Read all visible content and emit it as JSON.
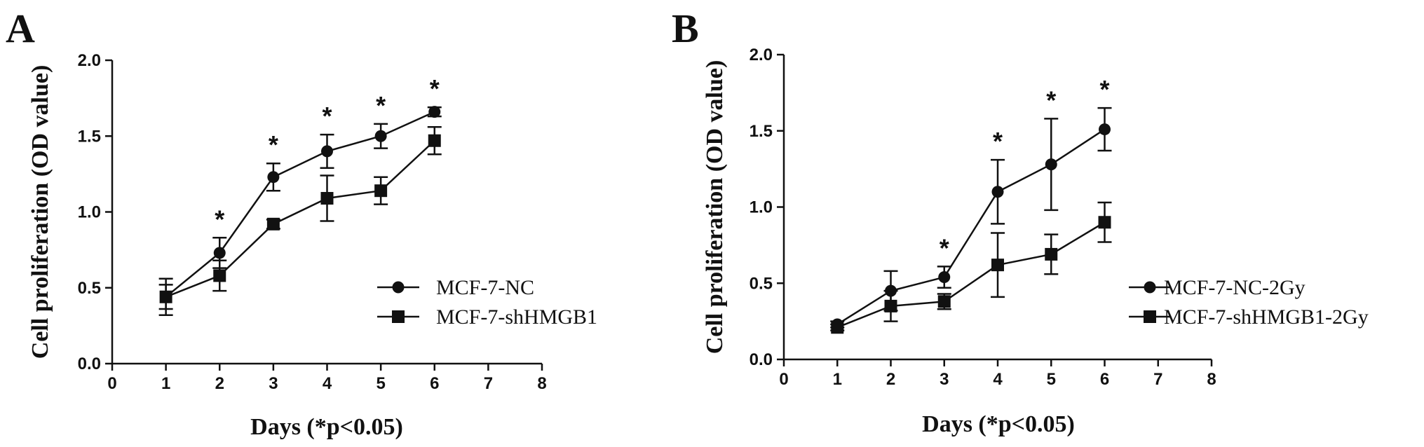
{
  "chart_data": [
    {
      "panel": "A",
      "type": "line",
      "xlabel": "Days (*p<0.05)",
      "ylabel": "Cell proliferation (OD value)",
      "xlim": [
        0,
        8
      ],
      "ylim": [
        0,
        2.0
      ],
      "x_ticks": [
        "0",
        "1",
        "2",
        "3",
        "4",
        "5",
        "6",
        "7",
        "8"
      ],
      "y_ticks": [
        "0.0",
        "0.5",
        "1.0",
        "1.5",
        "2.0"
      ],
      "significance_marker": "*",
      "significant_x": [
        2,
        3,
        4,
        5,
        6
      ],
      "legend_position": "right",
      "series": [
        {
          "name": "MCF-7-NC",
          "marker": "circle",
          "x": [
            1,
            2,
            3,
            4,
            5,
            6
          ],
          "values": [
            0.44,
            0.73,
            1.23,
            1.4,
            1.5,
            1.66
          ],
          "error": [
            0.08,
            0.1,
            0.09,
            0.11,
            0.08,
            0.03
          ]
        },
        {
          "name": "MCF-7-shHMGB1",
          "marker": "square",
          "x": [
            1,
            2,
            3,
            4,
            5,
            6
          ],
          "values": [
            0.44,
            0.58,
            0.92,
            1.09,
            1.14,
            1.47
          ],
          "error": [
            0.12,
            0.1,
            0.03,
            0.15,
            0.09,
            0.09
          ]
        }
      ]
    },
    {
      "panel": "B",
      "type": "line",
      "xlabel": "Days (*p<0.05)",
      "ylabel": "Cell proliferation (OD value)",
      "xlim": [
        0,
        8
      ],
      "ylim": [
        0,
        2.0
      ],
      "x_ticks": [
        "0",
        "1",
        "2",
        "3",
        "4",
        "5",
        "6",
        "7",
        "8"
      ],
      "y_ticks": [
        "0.0",
        "0.5",
        "1.0",
        "1.5",
        "2.0"
      ],
      "significance_marker": "*",
      "significant_x": [
        3,
        4,
        5,
        6
      ],
      "legend_position": "right",
      "series": [
        {
          "name": "MCF-7-NC-2Gy",
          "marker": "circle",
          "x": [
            1,
            2,
            3,
            4,
            5,
            6
          ],
          "values": [
            0.23,
            0.45,
            0.54,
            1.1,
            1.28,
            1.51
          ],
          "error": [
            0.02,
            0.13,
            0.07,
            0.21,
            0.3,
            0.14
          ]
        },
        {
          "name": "MCF-7-shHMGB1-2Gy",
          "marker": "square",
          "x": [
            1,
            2,
            3,
            4,
            5,
            6
          ],
          "values": [
            0.21,
            0.35,
            0.38,
            0.62,
            0.69,
            0.9
          ],
          "error": [
            0.02,
            0.1,
            0.05,
            0.21,
            0.13,
            0.13
          ]
        }
      ]
    }
  ]
}
